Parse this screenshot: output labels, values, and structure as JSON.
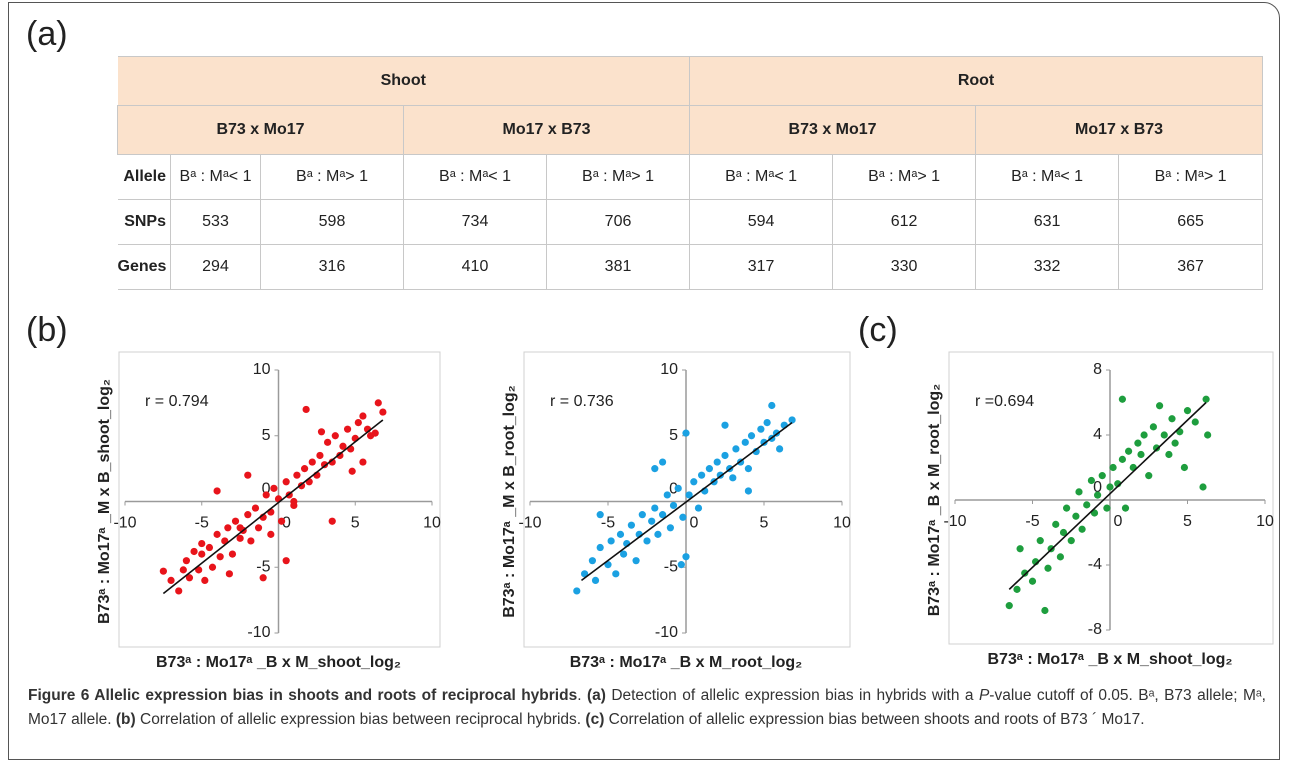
{
  "panel_labels": [
    "(a)",
    "(b)",
    "(c)"
  ],
  "table": {
    "header": [
      [
        "Shoot",
        "Root"
      ],
      [
        "B73 x Mo17",
        "Mo17 x B73",
        "B73 x Mo17",
        "Mo17 x B73"
      ]
    ],
    "rows": [
      [
        "Allele",
        "Bᵃ : Mᵃ< 1",
        "Bᵃ : Mᵃ> 1",
        "Bᵃ : Mᵃ< 1",
        "Bᵃ : Mᵃ> 1",
        "Bᵃ : Mᵃ< 1",
        "Bᵃ : Mᵃ> 1",
        "Bᵃ : Mᵃ< 1",
        "Bᵃ : Mᵃ> 1"
      ],
      [
        "SNPs",
        533,
        598,
        734,
        706,
        594,
        612,
        631,
        665
      ],
      [
        "Genes",
        294,
        316,
        410,
        381,
        317,
        330,
        332,
        367
      ]
    ]
  },
  "chart_data": [
    {
      "type": "scatter",
      "x_label": "B73ᵃ : Mo17ᵃ _B x M_shoot_log₂",
      "y_label": "B73ᵃ : Mo17ᵃ _M x B_shoot_log₂",
      "annotation": "r = 0.794",
      "xlim": [
        -10,
        10
      ],
      "ylim": [
        -10,
        10
      ],
      "xticks": [
        -10,
        -5,
        0,
        5,
        10
      ],
      "yticks": [
        -10,
        -5,
        0,
        5,
        10
      ],
      "color": "#e8141b",
      "x": [
        -7.5,
        -7,
        -6.5,
        -6,
        -5.8,
        -5.5,
        -5.2,
        -5,
        -4.8,
        -4.5,
        -4.3,
        -4,
        -3.8,
        -3.5,
        -3.3,
        -3,
        -2.8,
        -2.5,
        -2.3,
        -2,
        -1.8,
        -1.5,
        -1.3,
        -1,
        -0.8,
        -0.5,
        -0.3,
        0,
        0.2,
        0.5,
        0.7,
        1,
        1.2,
        1.5,
        1.7,
        2,
        2.2,
        2.5,
        2.7,
        3,
        3.2,
        3.5,
        3.7,
        4,
        4.2,
        4.5,
        4.7,
        5,
        5.2,
        5.5,
        5.8,
        6,
        6.3,
        6.5,
        6.8,
        -3.2,
        -2,
        1.8,
        3.5,
        -6.2,
        -4,
        0.5,
        2.8,
        -1,
        -5,
        4.8,
        -2.5,
        1,
        5.5,
        -0.5
      ],
      "values": [
        -5.3,
        -6,
        -6.8,
        -4.5,
        -5.8,
        -3.8,
        -5.2,
        -4,
        -6,
        -3.5,
        -5,
        -2.5,
        -4.2,
        -3,
        -2,
        -4,
        -1.5,
        -2.8,
        -2.2,
        -1,
        -3,
        -0.5,
        -2,
        -1.2,
        0.5,
        -0.8,
        1,
        0.2,
        -1.5,
        1.5,
        0.5,
        0,
        2,
        1.2,
        2.5,
        1.5,
        3,
        2,
        3.5,
        2.8,
        4.5,
        3,
        5,
        3.5,
        4.2,
        5.5,
        4,
        4.8,
        6,
        3,
        5.5,
        5,
        5.2,
        7.5,
        6.8,
        -5.5,
        2,
        7,
        -1.5,
        -5.2,
        0.8,
        -4.5,
        5.3,
        -5.8,
        -3.2,
        2.3,
        -2,
        -0.3,
        6.5,
        -2.5
      ],
      "fit": {
        "x": [
          -7.5,
          6.8
        ],
        "values": [
          -7,
          6.2
        ]
      }
    },
    {
      "type": "scatter",
      "x_label": "B73ᵃ : Mo17ᵃ _B x M_root_log₂",
      "y_label": "B73ᵃ : Mo17ᵃ _M x B_root_log₂",
      "annotation": "r = 0.736",
      "xlim": [
        -10,
        10
      ],
      "ylim": [
        -10,
        10
      ],
      "xticks": [
        -10,
        -5,
        0,
        5,
        10
      ],
      "yticks": [
        -10,
        -5,
        0,
        5,
        10
      ],
      "color": "#1ba1e2",
      "x": [
        -7,
        -6.5,
        -6,
        -5.8,
        -5.5,
        -5,
        -4.8,
        -4.5,
        -4.2,
        -4,
        -3.8,
        -3.5,
        -3.2,
        -3,
        -2.8,
        -2.5,
        -2.2,
        -2,
        -1.8,
        -1.5,
        -1.2,
        -1,
        -0.8,
        -0.5,
        -0.2,
        0,
        -0.3,
        0.2,
        0.5,
        0.8,
        1,
        1.2,
        1.5,
        1.8,
        2,
        2.2,
        2.5,
        2.8,
        3,
        3.2,
        3.5,
        3.8,
        4,
        4.2,
        4.5,
        4.8,
        5,
        5.2,
        5.5,
        5.8,
        6,
        6.3,
        6.8,
        5.5,
        0,
        -2,
        4,
        -5.5,
        2.5,
        -1.5
      ],
      "values": [
        -6.8,
        -5.5,
        -4.5,
        -6,
        -3.5,
        -4.8,
        -3,
        -5.5,
        -2.5,
        -4,
        -3.2,
        -1.8,
        -4.5,
        -2.5,
        -1,
        -3,
        -1.5,
        -0.5,
        -2.5,
        -1,
        0.5,
        -2,
        -0.3,
        1,
        -1.2,
        -4.2,
        -4.8,
        0.5,
        1.5,
        -0.5,
        2,
        0.8,
        2.5,
        1.5,
        3,
        2,
        3.5,
        2.5,
        1.8,
        4,
        3,
        4.5,
        2.5,
        5,
        3.8,
        5.5,
        4.5,
        6,
        4.8,
        5.2,
        4,
        5.8,
        6.2,
        7.3,
        5.2,
        2.5,
        0.8,
        -1,
        5.8,
        3
      ],
      "fit": {
        "x": [
          -6.7,
          6.8
        ],
        "values": [
          -6,
          6
        ]
      }
    },
    {
      "type": "scatter",
      "x_label": "B73ᵃ : Mo17ᵃ _B x M_shoot_log₂",
      "y_label": "B73ᵃ : Mo17ᵃ _B x M_root_log₂",
      "annotation": "r =0.694",
      "xlim": [
        -10,
        10
      ],
      "ylim": [
        -8,
        8
      ],
      "xticks": [
        -10,
        -5,
        0,
        5,
        10
      ],
      "yticks": [
        -8,
        -4,
        0,
        4,
        8
      ],
      "color": "#1e9e3e",
      "x": [
        -6.5,
        -6,
        -5.5,
        -5.8,
        -5,
        -4.8,
        -4.5,
        -4.2,
        -4,
        -3.8,
        -3.5,
        -3.2,
        -3,
        -2.8,
        -2.5,
        -2.2,
        -2,
        -1.8,
        -1.5,
        -1.2,
        -1,
        -0.8,
        -0.5,
        -0.2,
        0,
        0.2,
        0.5,
        0.8,
        1,
        1.2,
        1.5,
        1.8,
        2,
        2.2,
        2.5,
        2.8,
        3,
        3.2,
        3.5,
        3.8,
        4,
        4.2,
        4.5,
        4.8,
        5,
        5.5,
        6,
        6.2,
        6.3,
        0.8
      ],
      "values": [
        -6.5,
        -5.5,
        -4.5,
        -3,
        -5,
        -3.8,
        -2.5,
        -6.8,
        -4.2,
        -3,
        -1.5,
        -3.5,
        -2,
        -0.5,
        -2.5,
        -1,
        0.5,
        -1.8,
        -0.3,
        1.2,
        -0.8,
        0.3,
        1.5,
        -0.5,
        0.8,
        2,
        1,
        2.5,
        -0.5,
        3,
        2,
        3.5,
        2.8,
        4,
        1.5,
        4.5,
        3.2,
        5.8,
        4,
        2.8,
        5,
        3.5,
        4.2,
        2,
        5.5,
        4.8,
        0.8,
        6.2,
        4,
        6.2
      ],
      "fit": {
        "x": [
          -6.5,
          6.2
        ],
        "values": [
          -5.5,
          6
        ]
      }
    }
  ],
  "caption": [
    "Figure 6 Allelic expression bias in shoots and roots of reciprocal hybrids",
    ". ",
    "(a)",
    " Detection of allelic expression bias in hybrids with a ",
    "P",
    "-value cutoff of 0.05. Bᵃ, B73 allele; Mᵃ, Mo17 allele. ",
    "(b)",
    " Correlation of allelic expression bias between reciprocal hybrids. ",
    "(c)",
    " Correlation of allelic expression bias between shoots and roots of B73 ´ Mo17."
  ]
}
